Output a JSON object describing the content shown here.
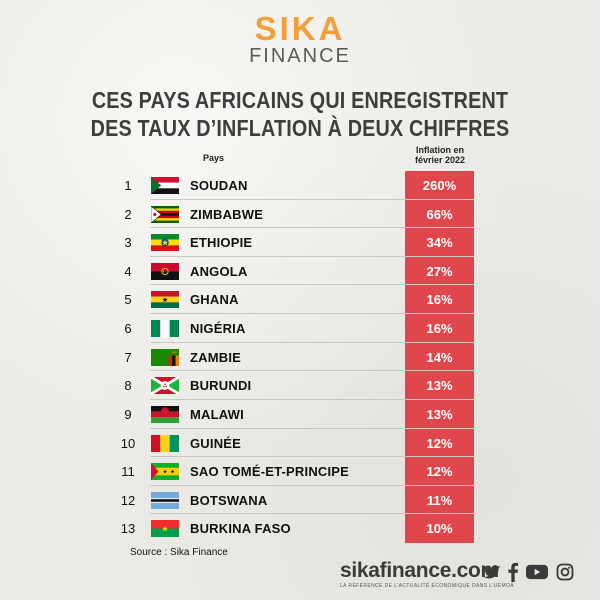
{
  "logo": {
    "line1": "SIKA",
    "line2": "FINANCE"
  },
  "title": {
    "line1": "CES PAYS AFRICAINS QUI ENREGISTRENT",
    "line2": "DES TAUX D’INFLATION À DEUX CHIFFRES"
  },
  "columns": {
    "country": "Pays",
    "inflation_line1": "Inflation en",
    "inflation_line2": "février 2022"
  },
  "colors": {
    "accent": "#e0474c",
    "brand": "#f2a03a"
  },
  "chart_data": {
    "type": "table",
    "title": "CES PAYS AFRICAINS QUI ENREGISTRENT DES TAUX D’INFLATION À DEUX CHIFFRES",
    "columns": [
      "Pays",
      "Inflation en février 2022"
    ],
    "rows": [
      {
        "rank": "1",
        "country": "SOUDAN",
        "value": "260%",
        "flag": "sudan-flag-icon"
      },
      {
        "rank": "2",
        "country": "ZIMBABWE",
        "value": "66%",
        "flag": "zimbabwe-flag-icon"
      },
      {
        "rank": "3",
        "country": "ETHIOPIE",
        "value": "34%",
        "flag": "ethiopia-flag-icon"
      },
      {
        "rank": "4",
        "country": "ANGOLA",
        "value": "27%",
        "flag": "angola-flag-icon"
      },
      {
        "rank": "5",
        "country": "GHANA",
        "value": "16%",
        "flag": "ghana-flag-icon"
      },
      {
        "rank": "6",
        "country": "NIGÉRIA",
        "value": "16%",
        "flag": "nigeria-flag-icon"
      },
      {
        "rank": "7",
        "country": "ZAMBIE",
        "value": "14%",
        "flag": "zambia-flag-icon"
      },
      {
        "rank": "8",
        "country": "BURUNDI",
        "value": "13%",
        "flag": "burundi-flag-icon"
      },
      {
        "rank": "9",
        "country": "MALAWI",
        "value": "13%",
        "flag": "malawi-flag-icon"
      },
      {
        "rank": "10",
        "country": "GUINÉE",
        "value": "12%",
        "flag": "guinea-flag-icon"
      },
      {
        "rank": "11",
        "country": "SAO TOMÉ-ET-PRINCIPE",
        "value": "12%",
        "flag": "sao-tome-flag-icon"
      },
      {
        "rank": "12",
        "country": "BOTSWANA",
        "value": "11%",
        "flag": "botswana-flag-icon"
      },
      {
        "rank": "13",
        "country": "BURKINA FASO",
        "value": "10%",
        "flag": "burkina-faso-flag-icon"
      }
    ]
  },
  "source": "Source : Sika Finance",
  "footer": {
    "site": "sikafinance.com",
    "tagline": "LA RÉFÉRENCE DE L’ACTUALITÉ ÉCONOMIQUE DANS L’UEMOA",
    "social_icons": [
      "twitter-icon",
      "facebook-icon",
      "youtube-icon",
      "instagram-icon"
    ]
  }
}
